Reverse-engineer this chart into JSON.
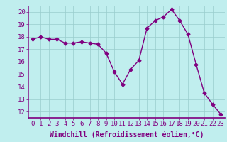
{
  "x": [
    0,
    1,
    2,
    3,
    4,
    5,
    6,
    7,
    8,
    9,
    10,
    11,
    12,
    13,
    14,
    15,
    16,
    17,
    18,
    19,
    20,
    21,
    22,
    23
  ],
  "y": [
    17.8,
    18.0,
    17.8,
    17.8,
    17.5,
    17.5,
    17.6,
    17.5,
    17.4,
    16.7,
    15.2,
    14.2,
    15.4,
    16.1,
    18.7,
    19.3,
    19.6,
    20.2,
    19.3,
    18.2,
    15.8,
    13.5,
    12.6,
    11.8
  ],
  "line_color": "#800080",
  "marker": "D",
  "marker_size": 2.5,
  "bg_color": "#c0eeee",
  "grid_color": "#99cccc",
  "xlabel": "Windchill (Refroidissement éolien,°C)",
  "ylim": [
    11.5,
    20.5
  ],
  "xlim": [
    -0.5,
    23.5
  ],
  "yticks": [
    12,
    13,
    14,
    15,
    16,
    17,
    18,
    19,
    20
  ],
  "xticks": [
    0,
    1,
    2,
    3,
    4,
    5,
    6,
    7,
    8,
    9,
    10,
    11,
    12,
    13,
    14,
    15,
    16,
    17,
    18,
    19,
    20,
    21,
    22,
    23
  ],
  "tick_fontsize": 6.5,
  "xlabel_fontsize": 7,
  "line_width": 1.0,
  "axis_color": "#800080"
}
